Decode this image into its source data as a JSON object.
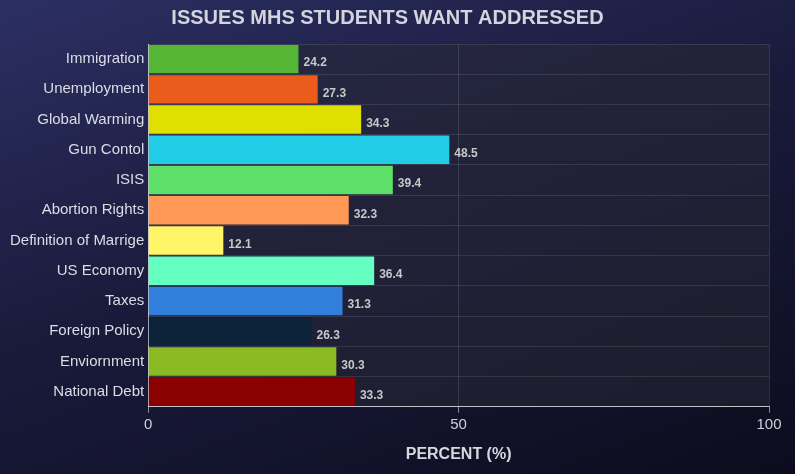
{
  "chart_data": {
    "type": "bar",
    "orientation": "horizontal",
    "title": "ISSUES MHS STUDENTS WANT ADDRESSED",
    "x_label": "PERCENT (%)",
    "categories": [
      "Immigration",
      "Unemployment",
      "Global Warming",
      "Gun Contol",
      "ISIS",
      "Abortion Rights",
      "Definition of Marrige",
      "US Economy",
      "Taxes",
      "Foreign Policy",
      "Enviornment",
      "National Debt"
    ],
    "values": [
      24.2,
      27.3,
      34.3,
      48.5,
      39.4,
      32.3,
      12.1,
      36.4,
      31.3,
      26.3,
      30.3,
      33.3
    ],
    "colors": [
      "#55b534",
      "#ea5b1c",
      "#e0e000",
      "#22cce6",
      "#5ee068",
      "#ff9955",
      "#fff566",
      "#66ffc2",
      "#2f7fdb",
      "#0b2238",
      "#8bbb22",
      "#8b0000"
    ],
    "xlim": [
      0,
      100
    ],
    "xticks": [
      0,
      50,
      100
    ],
    "grid": true,
    "data_labels": true
  }
}
